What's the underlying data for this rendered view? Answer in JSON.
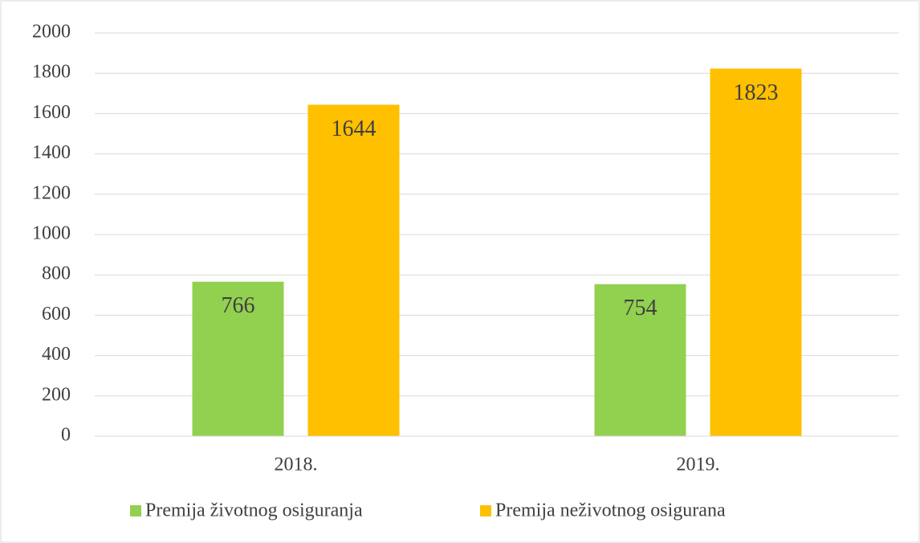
{
  "chart_data": {
    "type": "bar",
    "categories": [
      "2018.",
      "2019."
    ],
    "series": [
      {
        "name": "Premija životnog osiguranja",
        "color": "#92d050",
        "values": [
          766,
          754
        ]
      },
      {
        "name": "Premija neživotnog osigurana",
        "color": "#ffc000",
        "values": [
          1644,
          1823
        ]
      }
    ],
    "ylim": [
      0,
      2000
    ],
    "yticks": [
      0,
      200,
      400,
      600,
      800,
      1000,
      1200,
      1400,
      1600,
      1800,
      2000
    ],
    "grid": true,
    "legend": "bottom"
  }
}
